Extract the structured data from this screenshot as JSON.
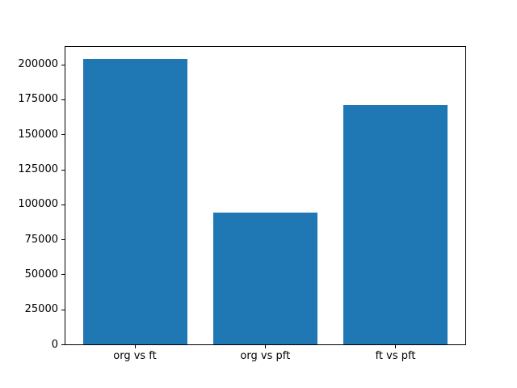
{
  "chart_data": {
    "type": "bar",
    "categories": [
      "org vs ft",
      "org vs pft",
      "ft vs pft"
    ],
    "values": [
      204000,
      94000,
      171000
    ],
    "title": "",
    "xlabel": "",
    "ylabel": "",
    "ylim": [
      0,
      213000
    ],
    "xlim": [
      -0.54,
      2.54
    ],
    "yticks": [
      0,
      25000,
      50000,
      75000,
      100000,
      125000,
      150000,
      175000,
      200000
    ],
    "bar_width": 0.8,
    "bar_color": "#1f77b4",
    "spine_color": "#000000",
    "tick_label_color": "#000000",
    "background": "#ffffff",
    "grid": false,
    "legend": false
  }
}
